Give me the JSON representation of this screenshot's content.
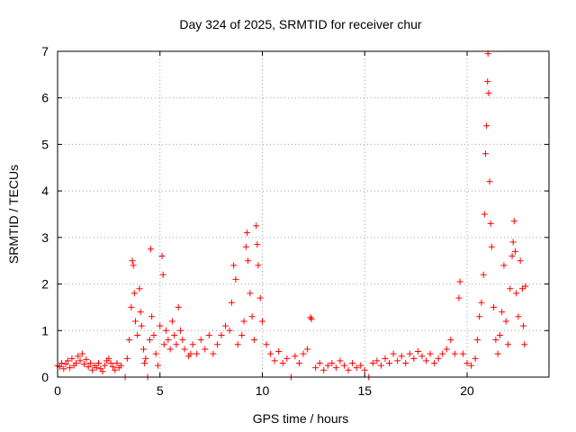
{
  "chart_data": {
    "type": "scatter",
    "title": "Day 324 of 2025, SRMTID for receiver chur",
    "xlabel": "GPS time / hours",
    "ylabel": "SRMTID / TECUs",
    "xlim": [
      0,
      24
    ],
    "ylim": [
      0,
      7
    ],
    "xticks": [
      0,
      5,
      10,
      15,
      20
    ],
    "yticks": [
      0,
      1,
      2,
      3,
      4,
      5,
      6,
      7
    ],
    "grid": true,
    "marker": "+",
    "color": "#ff0000",
    "series": [
      {
        "name": "SRMTID",
        "points": [
          [
            0.0,
            0.25
          ],
          [
            0.1,
            0.22
          ],
          [
            0.2,
            0.3
          ],
          [
            0.3,
            0.18
          ],
          [
            0.4,
            0.28
          ],
          [
            0.5,
            0.35
          ],
          [
            0.6,
            0.2
          ],
          [
            0.7,
            0.4
          ],
          [
            0.8,
            0.25
          ],
          [
            0.9,
            0.3
          ],
          [
            1.0,
            0.45
          ],
          [
            1.1,
            0.35
          ],
          [
            1.2,
            0.5
          ],
          [
            1.3,
            0.28
          ],
          [
            1.4,
            0.38
          ],
          [
            1.5,
            0.22
          ],
          [
            1.6,
            0.3
          ],
          [
            1.7,
            0.15
          ],
          [
            1.8,
            0.25
          ],
          [
            1.9,
            0.2
          ],
          [
            2.0,
            0.3
          ],
          [
            2.1,
            0.18
          ],
          [
            2.2,
            0.12
          ],
          [
            2.3,
            0.25
          ],
          [
            2.4,
            0.35
          ],
          [
            2.5,
            0.4
          ],
          [
            2.6,
            0.3
          ],
          [
            2.7,
            0.22
          ],
          [
            2.8,
            0.15
          ],
          [
            2.9,
            0.3
          ],
          [
            3.0,
            0.2
          ],
          [
            3.1,
            0.25
          ],
          [
            3.3,
            0.0
          ],
          [
            3.4,
            0.4
          ],
          [
            3.5,
            0.8
          ],
          [
            3.6,
            1.5
          ],
          [
            3.65,
            2.5
          ],
          [
            3.7,
            2.4
          ],
          [
            3.75,
            1.8
          ],
          [
            3.8,
            1.2
          ],
          [
            3.9,
            0.9
          ],
          [
            4.0,
            1.9
          ],
          [
            4.05,
            1.4
          ],
          [
            4.1,
            1.1
          ],
          [
            4.2,
            0.6
          ],
          [
            4.25,
            0.3
          ],
          [
            4.3,
            0.4
          ],
          [
            4.4,
            0.0
          ],
          [
            4.5,
            0.8
          ],
          [
            4.55,
            2.75
          ],
          [
            4.6,
            1.3
          ],
          [
            4.7,
            0.9
          ],
          [
            4.8,
            0.5
          ],
          [
            4.9,
            0.25
          ],
          [
            5.0,
            1.1
          ],
          [
            5.1,
            2.6
          ],
          [
            5.15,
            2.2
          ],
          [
            5.2,
            0.7
          ],
          [
            5.3,
            1.0
          ],
          [
            5.4,
            0.8
          ],
          [
            5.5,
            0.6
          ],
          [
            5.6,
            1.2
          ],
          [
            5.7,
            0.9
          ],
          [
            5.8,
            0.7
          ],
          [
            5.9,
            1.5
          ],
          [
            6.0,
            1.0
          ],
          [
            6.1,
            0.8
          ],
          [
            6.2,
            0.6
          ],
          [
            6.4,
            0.45
          ],
          [
            6.5,
            0.5
          ],
          [
            6.6,
            0.7
          ],
          [
            6.8,
            0.5
          ],
          [
            7.0,
            0.8
          ],
          [
            7.2,
            0.6
          ],
          [
            7.4,
            0.9
          ],
          [
            7.6,
            0.5
          ],
          [
            7.8,
            0.7
          ],
          [
            8.0,
            0.9
          ],
          [
            8.2,
            1.1
          ],
          [
            8.4,
            1.0
          ],
          [
            8.5,
            1.6
          ],
          [
            8.6,
            2.4
          ],
          [
            8.7,
            2.1
          ],
          [
            8.8,
            0.7
          ],
          [
            9.0,
            0.9
          ],
          [
            9.1,
            1.2
          ],
          [
            9.2,
            2.8
          ],
          [
            9.25,
            3.1
          ],
          [
            9.3,
            2.5
          ],
          [
            9.4,
            1.8
          ],
          [
            9.5,
            1.3
          ],
          [
            9.6,
            0.8
          ],
          [
            9.7,
            3.25
          ],
          [
            9.75,
            2.85
          ],
          [
            9.8,
            2.4
          ],
          [
            9.9,
            1.7
          ],
          [
            10.0,
            1.2
          ],
          [
            10.2,
            0.7
          ],
          [
            10.4,
            0.5
          ],
          [
            10.6,
            0.35
          ],
          [
            10.8,
            0.55
          ],
          [
            11.0,
            0.3
          ],
          [
            11.2,
            0.4
          ],
          [
            11.4,
            0.0
          ],
          [
            11.6,
            0.45
          ],
          [
            11.8,
            0.3
          ],
          [
            12.0,
            0.5
          ],
          [
            12.2,
            0.6
          ],
          [
            12.35,
            1.28
          ],
          [
            12.4,
            1.25
          ],
          [
            12.6,
            0.2
          ],
          [
            12.8,
            0.3
          ],
          [
            13.0,
            0.15
          ],
          [
            13.2,
            0.25
          ],
          [
            13.4,
            0.3
          ],
          [
            13.6,
            0.2
          ],
          [
            13.8,
            0.35
          ],
          [
            14.0,
            0.25
          ],
          [
            14.2,
            0.15
          ],
          [
            14.4,
            0.3
          ],
          [
            14.6,
            0.2
          ],
          [
            14.8,
            0.25
          ],
          [
            15.0,
            0.15
          ],
          [
            15.2,
            0.0
          ],
          [
            15.4,
            0.3
          ],
          [
            15.6,
            0.35
          ],
          [
            15.8,
            0.25
          ],
          [
            16.0,
            0.4
          ],
          [
            16.2,
            0.3
          ],
          [
            16.4,
            0.5
          ],
          [
            16.6,
            0.35
          ],
          [
            16.8,
            0.45
          ],
          [
            17.0,
            0.3
          ],
          [
            17.2,
            0.5
          ],
          [
            17.4,
            0.4
          ],
          [
            17.6,
            0.55
          ],
          [
            17.8,
            0.45
          ],
          [
            18.0,
            0.35
          ],
          [
            18.2,
            0.5
          ],
          [
            18.4,
            0.3
          ],
          [
            18.6,
            0.4
          ],
          [
            18.8,
            0.5
          ],
          [
            19.0,
            0.6
          ],
          [
            19.2,
            0.8
          ],
          [
            19.4,
            0.5
          ],
          [
            19.6,
            1.7
          ],
          [
            19.65,
            2.05
          ],
          [
            19.8,
            0.5
          ],
          [
            20.0,
            0.3
          ],
          [
            20.2,
            0.25
          ],
          [
            20.4,
            0.4
          ],
          [
            20.5,
            0.8
          ],
          [
            20.6,
            1.3
          ],
          [
            20.7,
            1.6
          ],
          [
            20.8,
            2.2
          ],
          [
            20.85,
            3.5
          ],
          [
            20.9,
            4.8
          ],
          [
            20.95,
            5.4
          ],
          [
            21.0,
            6.35
          ],
          [
            21.02,
            6.95
          ],
          [
            21.05,
            6.1
          ],
          [
            21.1,
            4.2
          ],
          [
            21.15,
            3.3
          ],
          [
            21.2,
            2.8
          ],
          [
            21.3,
            1.5
          ],
          [
            21.4,
            0.8
          ],
          [
            21.5,
            0.5
          ],
          [
            21.6,
            0.9
          ],
          [
            21.7,
            1.4
          ],
          [
            21.8,
            2.4
          ],
          [
            21.9,
            1.2
          ],
          [
            22.0,
            0.7
          ],
          [
            22.1,
            1.9
          ],
          [
            22.2,
            2.6
          ],
          [
            22.25,
            2.9
          ],
          [
            22.3,
            3.35
          ],
          [
            22.35,
            2.7
          ],
          [
            22.4,
            1.8
          ],
          [
            22.5,
            1.3
          ],
          [
            22.6,
            2.5
          ],
          [
            22.7,
            1.9
          ],
          [
            22.75,
            1.1
          ],
          [
            22.8,
            0.7
          ],
          [
            22.85,
            1.95
          ]
        ]
      }
    ]
  }
}
